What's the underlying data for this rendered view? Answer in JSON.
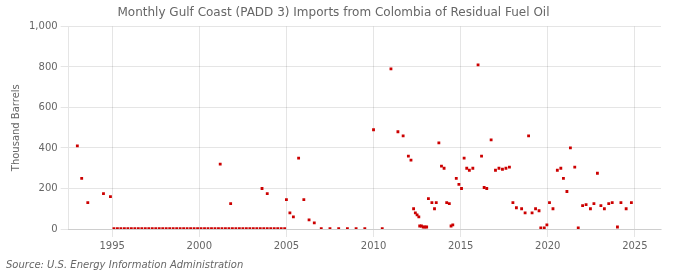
{
  "chart_data": {
    "type": "scatter",
    "title": "Monthly Gulf Coast (PADD 3) Imports from Colombia of Residual Fuel Oil",
    "ylabel": "Thousand Barrels",
    "annotations": [
      "Source: U.S. Energy Information Administration"
    ],
    "color": "#cc0000",
    "marker": "square",
    "grid": true,
    "xlim": [
      1992.5,
      2026.5
    ],
    "ylim": [
      0,
      1000
    ],
    "xticks": [
      1995,
      2000,
      2005,
      2010,
      2015,
      2020,
      2025
    ],
    "yticks": [
      0,
      200,
      400,
      600,
      800,
      {
        "value": 1000,
        "label": "1,000"
      }
    ],
    "x": [
      1993.0,
      1993.25,
      1993.6,
      1994.5,
      1994.9,
      1995.1,
      1995.3,
      1995.5,
      1995.7,
      1995.9,
      1996.1,
      1996.3,
      1996.5,
      1996.7,
      1996.9,
      1997.1,
      1997.3,
      1997.5,
      1997.7,
      1997.9,
      1998.1,
      1998.3,
      1998.5,
      1998.7,
      1998.9,
      1999.1,
      1999.3,
      1999.5,
      1999.7,
      1999.9,
      2000.1,
      2000.3,
      2000.5,
      2000.7,
      2000.9,
      2001.1,
      2001.3,
      2001.5,
      2001.7,
      2001.9,
      2002.1,
      2002.3,
      2002.5,
      2002.7,
      2002.9,
      2003.1,
      2003.3,
      2003.5,
      2003.7,
      2003.9,
      2004.1,
      2004.3,
      2004.5,
      2004.7,
      2004.9,
      2001.2,
      2001.8,
      2003.6,
      2003.9,
      2005.0,
      2005.2,
      2005.4,
      2005.7,
      2006.0,
      2006.3,
      2006.6,
      2007.0,
      2007.5,
      2008.0,
      2008.5,
      2009.0,
      2009.5,
      2010.0,
      2010.5,
      2011.0,
      2011.4,
      2011.7,
      2012.0,
      2012.15,
      2012.3,
      2012.4,
      2012.5,
      2012.6,
      2012.65,
      2012.75,
      2012.85,
      2012.95,
      2013.05,
      2013.15,
      2013.35,
      2013.5,
      2013.6,
      2013.75,
      2013.9,
      2014.05,
      2014.2,
      2014.35,
      2014.45,
      2014.55,
      2014.75,
      2014.9,
      2015.05,
      2015.2,
      2015.35,
      2015.5,
      2015.7,
      2016.0,
      2016.2,
      2016.35,
      2016.5,
      2016.75,
      2017.0,
      2017.2,
      2017.4,
      2017.6,
      2017.8,
      2018.0,
      2018.2,
      2018.5,
      2018.7,
      2018.9,
      2019.1,
      2019.3,
      2019.5,
      2019.6,
      2019.8,
      2019.95,
      2020.1,
      2020.3,
      2020.55,
      2020.75,
      2020.9,
      2021.1,
      2021.3,
      2021.55,
      2021.75,
      2022.0,
      2022.2,
      2022.45,
      2022.65,
      2022.85,
      2023.05,
      2023.25,
      2023.5,
      2023.7,
      2024.0,
      2024.2,
      2024.5,
      2024.8
    ],
    "values": [
      410,
      250,
      130,
      175,
      160,
      2,
      2,
      2,
      2,
      2,
      2,
      2,
      2,
      2,
      2,
      2,
      2,
      2,
      2,
      2,
      2,
      2,
      2,
      2,
      2,
      2,
      2,
      2,
      2,
      2,
      2,
      2,
      2,
      2,
      2,
      2,
      2,
      2,
      2,
      2,
      2,
      2,
      2,
      2,
      2,
      2,
      2,
      2,
      2,
      2,
      2,
      2,
      2,
      2,
      2,
      320,
      125,
      200,
      175,
      145,
      80,
      60,
      350,
      145,
      45,
      30,
      2,
      2,
      2,
      2,
      2,
      2,
      490,
      2,
      790,
      480,
      460,
      360,
      340,
      100,
      80,
      70,
      60,
      15,
      15,
      10,
      10,
      10,
      150,
      130,
      100,
      130,
      425,
      310,
      300,
      130,
      125,
      15,
      20,
      250,
      220,
      200,
      350,
      300,
      290,
      300,
      810,
      360,
      205,
      200,
      440,
      290,
      300,
      295,
      300,
      305,
      130,
      105,
      100,
      80,
      460,
      80,
      100,
      90,
      5,
      5,
      20,
      130,
      100,
      290,
      300,
      250,
      185,
      400,
      305,
      5,
      115,
      120,
      100,
      125,
      275,
      115,
      100,
      125,
      130,
      10,
      130,
      100,
      130
    ]
  }
}
